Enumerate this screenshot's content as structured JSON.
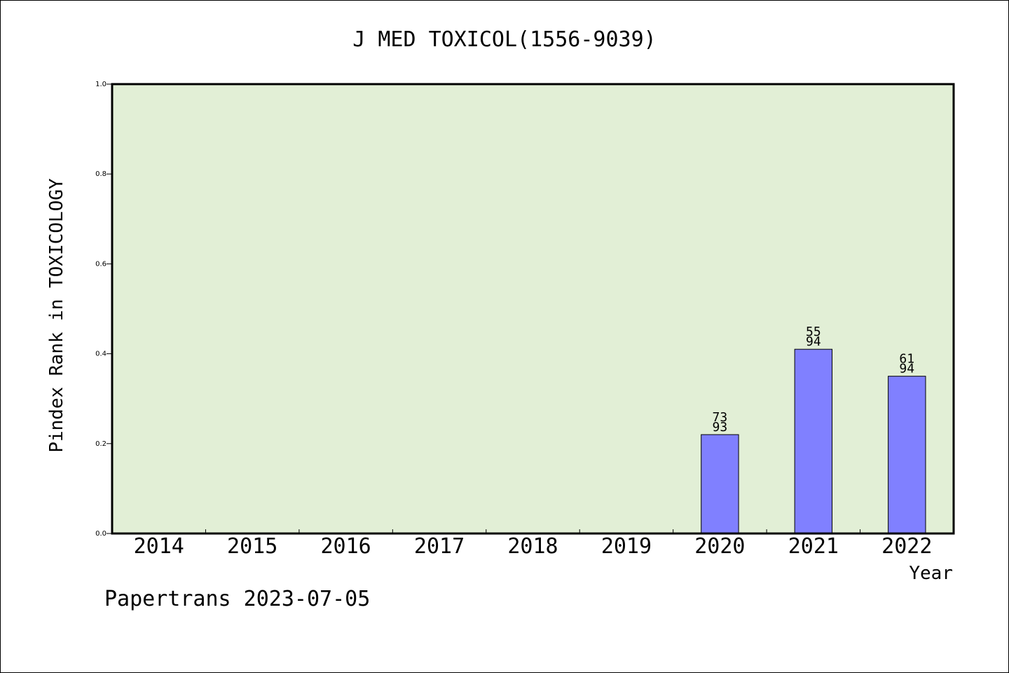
{
  "chart_data": {
    "type": "bar",
    "title": "J MED TOXICOL(1556-9039)",
    "xlabel": "Year",
    "ylabel": "Pindex Rank in TOXICOLOGY",
    "ylim": [
      0,
      1.0
    ],
    "yticks": [
      "0.0",
      "0.2",
      "0.4",
      "0.6",
      "0.8",
      "1.0"
    ],
    "categories": [
      "2014",
      "2015",
      "2016",
      "2017",
      "2018",
      "2019",
      "2020",
      "2021",
      "2022"
    ],
    "values": [
      null,
      null,
      null,
      null,
      null,
      null,
      0.22,
      0.41,
      0.35
    ],
    "rank_labels": [
      null,
      null,
      null,
      null,
      null,
      null,
      [
        "73",
        "93"
      ],
      [
        "55",
        "94"
      ],
      [
        "61",
        "94"
      ]
    ],
    "grid": false,
    "colors": {
      "plot_background": "#e2efd6",
      "bar": "#8080ff"
    }
  },
  "footer": {
    "credit": "Papertrans 2023-07-05"
  }
}
